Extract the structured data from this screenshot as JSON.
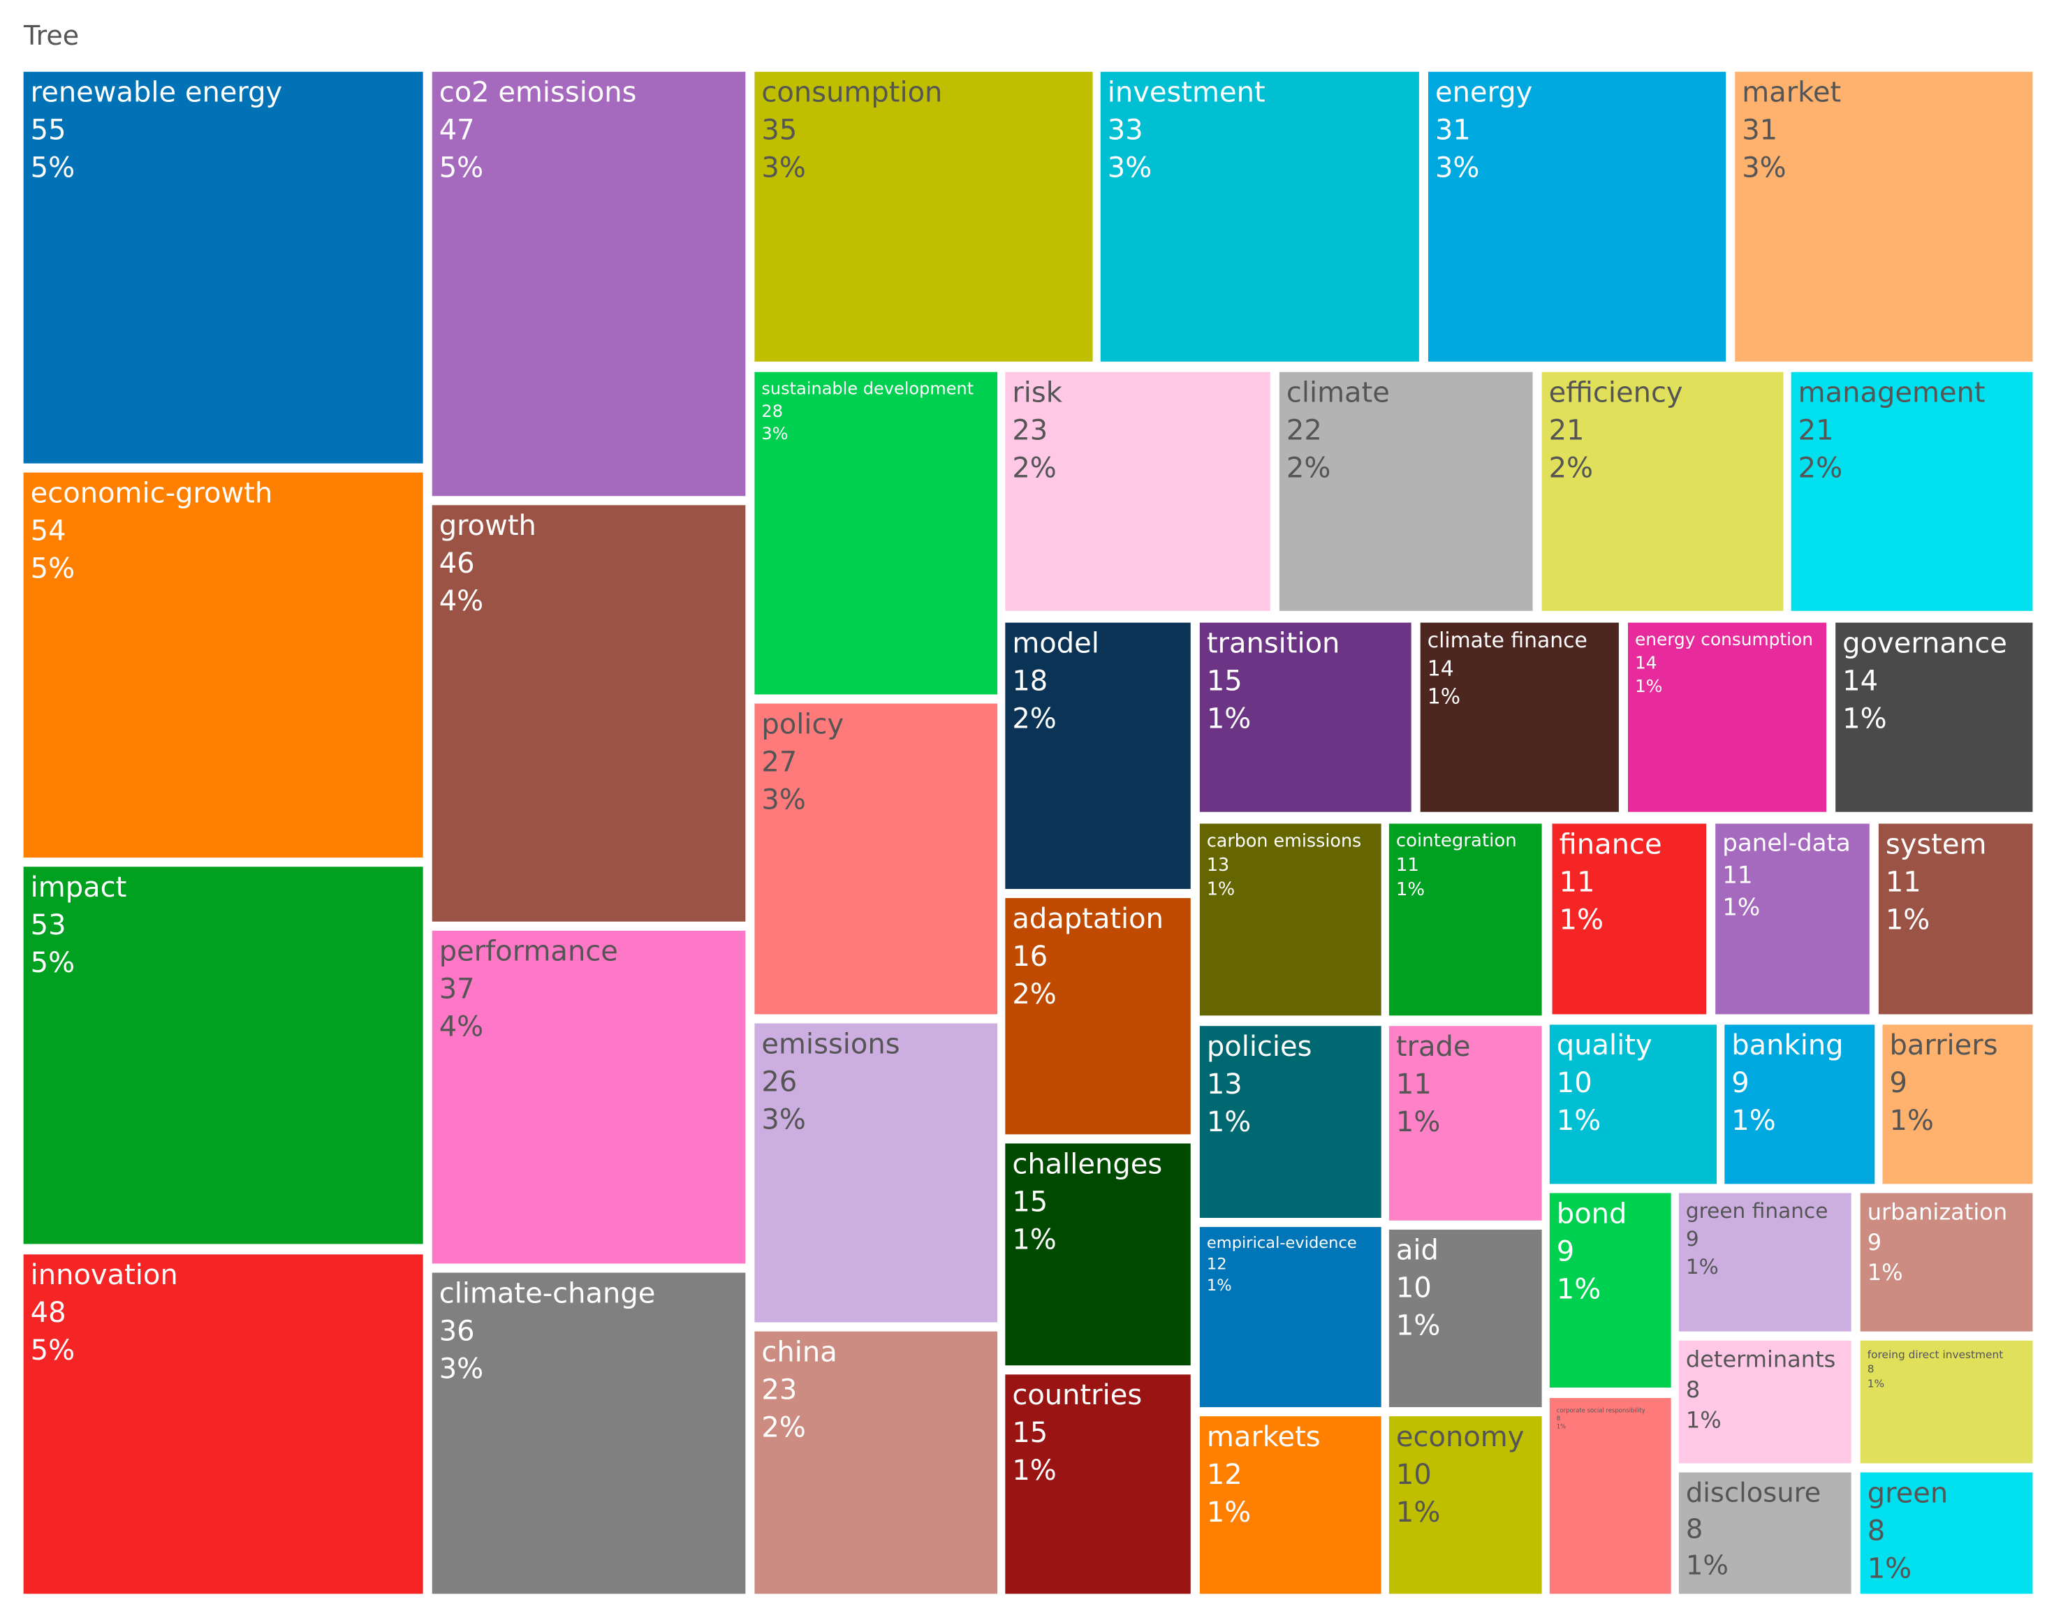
{
  "chart_data": {
    "type": "treemap",
    "title": "Tree",
    "categories": [
      "renewable energy",
      "economic-growth",
      "impact",
      "innovation",
      "co2 emissions",
      "growth",
      "performance",
      "climate-change",
      "consumption",
      "investment",
      "energy",
      "market",
      "sustainable development",
      "policy",
      "emissions",
      "china",
      "risk",
      "climate",
      "efficiency",
      "management",
      "model",
      "adaptation",
      "challenges",
      "countries",
      "transition",
      "climate finance",
      "energy consumption",
      "governance",
      "carbon emissions",
      "policies",
      "empirical-evidence",
      "markets",
      "cointegration",
      "trade",
      "aid",
      "economy",
      "finance",
      "panel-data",
      "system",
      "quality",
      "banking",
      "barriers",
      "bond",
      "corporate social responsibility",
      "green finance",
      "determinants",
      "disclosure",
      "urbanization",
      "foreing direct investment",
      "green"
    ],
    "values": [
      55,
      54,
      53,
      48,
      47,
      46,
      37,
      36,
      35,
      33,
      31,
      31,
      28,
      27,
      26,
      23,
      23,
      22,
      21,
      21,
      18,
      16,
      15,
      15,
      15,
      14,
      14,
      14,
      13,
      13,
      12,
      12,
      11,
      11,
      10,
      10,
      11,
      11,
      11,
      10,
      9,
      9,
      9,
      8,
      9,
      8,
      8,
      9,
      8,
      8
    ],
    "share_labels": [
      "5%",
      "5%",
      "5%",
      "5%",
      "5%",
      "4%",
      "4%",
      "3%",
      "3%",
      "3%",
      "3%",
      "3%",
      "3%",
      "3%",
      "3%",
      "2%",
      "2%",
      "2%",
      "2%",
      "2%",
      "2%",
      "2%",
      "1%",
      "1%",
      "1%",
      "1%",
      "1%",
      "1%",
      "1%",
      "1%",
      "1%",
      "1%",
      "1%",
      "1%",
      "1%",
      "1%",
      "1%",
      "1%",
      "1%",
      "1%",
      "1%",
      "1%",
      "1%",
      "1%",
      "1%",
      "1%",
      "1%",
      "1%",
      "1%",
      "1%"
    ],
    "colors": [
      "#0072b5",
      "#ff8000",
      "#00a020",
      "#f52525",
      "#a569bd",
      "#9b5346",
      "#ff78c8",
      "#808080",
      "#bfbf00",
      "#00bfd3",
      "#00a8e0",
      "#ffb26e",
      "#00d050",
      "#ff7b7b",
      "#cdaee0",
      "#cc8c82",
      "#ffc8e6",
      "#b3b3b3",
      "#e0e05a",
      "#00e0ee",
      "#0b3356",
      "#c04a00",
      "#004a00",
      "#9b1414",
      "#6c3485",
      "#4e2620",
      "#e82b9c",
      "#4a4a4a",
      "#666600",
      "#006870",
      "#0075b8",
      "#ff8000",
      "#00a020",
      "#ff82c8",
      "#7f7f7f",
      "#bfbf00",
      "#f52525",
      "#a569bd",
      "#9b5346",
      "#00bfd3",
      "#00a8e0",
      "#ffb26e",
      "#00d050",
      "#ff7b7b",
      "#cdaee0",
      "#ffc8e6",
      "#b3b3b3",
      "#cc8c82",
      "#e0e05a",
      "#00e0ee"
    ]
  }
}
